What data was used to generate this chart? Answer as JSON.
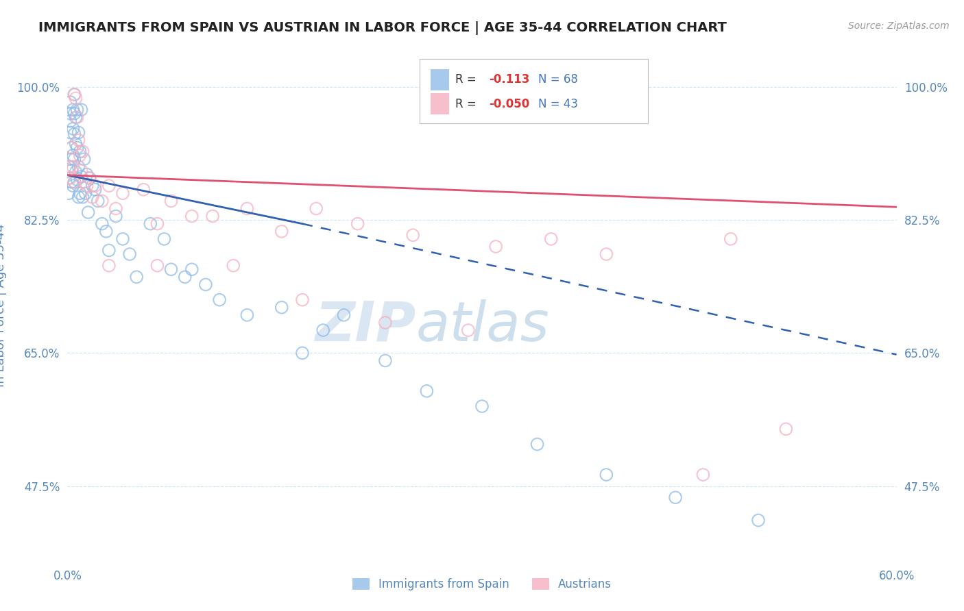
{
  "title": "IMMIGRANTS FROM SPAIN VS AUSTRIAN IN LABOR FORCE | AGE 35-44 CORRELATION CHART",
  "source_text": "Source: ZipAtlas.com",
  "ylabel": "In Labor Force | Age 35-44",
  "xlim": [
    0.0,
    0.6
  ],
  "ylim": [
    0.375,
    1.05
  ],
  "xtick_labels": [
    "0.0%",
    "60.0%"
  ],
  "xtick_vals": [
    0.0,
    0.6
  ],
  "ytick_labels": [
    "47.5%",
    "65.0%",
    "82.5%",
    "100.0%"
  ],
  "ytick_vals": [
    0.475,
    0.65,
    0.825,
    1.0
  ],
  "grid_color": "#d0e4f0",
  "background_color": "#ffffff",
  "blue_color": "#90bce8",
  "pink_color": "#f5b0c0",
  "title_color": "#222222",
  "axis_label_color": "#5588bb",
  "tick_label_color": "#5588bb",
  "legend_R_blue": "-0.113",
  "legend_N_blue": "68",
  "legend_R_pink": "-0.050",
  "legend_N_pink": "43",
  "watermark_zip": "ZIP",
  "watermark_atlas": "atlas",
  "scatter_blue_x": [
    0.001,
    0.001,
    0.001,
    0.002,
    0.002,
    0.002,
    0.002,
    0.003,
    0.003,
    0.003,
    0.003,
    0.004,
    0.004,
    0.004,
    0.004,
    0.005,
    0.005,
    0.005,
    0.005,
    0.005,
    0.006,
    0.006,
    0.006,
    0.007,
    0.007,
    0.007,
    0.008,
    0.008,
    0.008,
    0.009,
    0.009,
    0.01,
    0.01,
    0.011,
    0.012,
    0.013,
    0.014,
    0.015,
    0.016,
    0.018,
    0.02,
    0.022,
    0.025,
    0.028,
    0.03,
    0.035,
    0.04,
    0.045,
    0.05,
    0.06,
    0.07,
    0.075,
    0.085,
    0.09,
    0.1,
    0.11,
    0.13,
    0.155,
    0.17,
    0.185,
    0.2,
    0.23,
    0.26,
    0.3,
    0.34,
    0.39,
    0.44,
    0.5
  ],
  "scatter_blue_y": [
    0.895,
    0.88,
    0.86,
    0.98,
    0.965,
    0.955,
    0.94,
    0.92,
    0.905,
    0.89,
    0.875,
    0.97,
    0.945,
    0.91,
    0.87,
    0.99,
    0.965,
    0.938,
    0.905,
    0.875,
    0.96,
    0.925,
    0.888,
    0.97,
    0.92,
    0.878,
    0.94,
    0.895,
    0.855,
    0.915,
    0.86,
    0.97,
    0.882,
    0.855,
    0.905,
    0.86,
    0.885,
    0.835,
    0.88,
    0.87,
    0.865,
    0.85,
    0.82,
    0.81,
    0.785,
    0.83,
    0.8,
    0.78,
    0.75,
    0.82,
    0.8,
    0.76,
    0.75,
    0.76,
    0.74,
    0.72,
    0.7,
    0.71,
    0.65,
    0.68,
    0.7,
    0.64,
    0.6,
    0.58,
    0.53,
    0.49,
    0.46,
    0.43
  ],
  "scatter_pink_x": [
    0.001,
    0.002,
    0.003,
    0.004,
    0.005,
    0.005,
    0.006,
    0.007,
    0.008,
    0.009,
    0.01,
    0.011,
    0.012,
    0.014,
    0.016,
    0.018,
    0.02,
    0.025,
    0.03,
    0.035,
    0.04,
    0.055,
    0.065,
    0.075,
    0.09,
    0.105,
    0.13,
    0.155,
    0.18,
    0.21,
    0.25,
    0.31,
    0.35,
    0.39,
    0.48,
    0.03,
    0.065,
    0.12,
    0.17,
    0.23,
    0.29,
    0.46,
    0.52
  ],
  "scatter_pink_y": [
    0.895,
    0.88,
    0.92,
    0.895,
    0.99,
    0.875,
    0.985,
    0.96,
    0.93,
    0.91,
    0.89,
    0.915,
    0.875,
    0.87,
    0.88,
    0.855,
    0.87,
    0.85,
    0.87,
    0.84,
    0.86,
    0.865,
    0.82,
    0.85,
    0.83,
    0.83,
    0.84,
    0.81,
    0.84,
    0.82,
    0.805,
    0.79,
    0.8,
    0.78,
    0.8,
    0.765,
    0.765,
    0.765,
    0.72,
    0.69,
    0.68,
    0.49,
    0.55
  ],
  "trend_blue_solid": {
    "x": [
      0.0,
      0.17
    ],
    "y": [
      0.884,
      0.82
    ]
  },
  "trend_blue_dashed": {
    "x": [
      0.17,
      0.6
    ],
    "y": [
      0.82,
      0.648
    ]
  },
  "trend_pink_solid": {
    "x": [
      0.0,
      0.6
    ],
    "y": [
      0.884,
      0.842
    ]
  },
  "trend_blue_color": "#3060b0",
  "trend_pink_color": "#e05070"
}
